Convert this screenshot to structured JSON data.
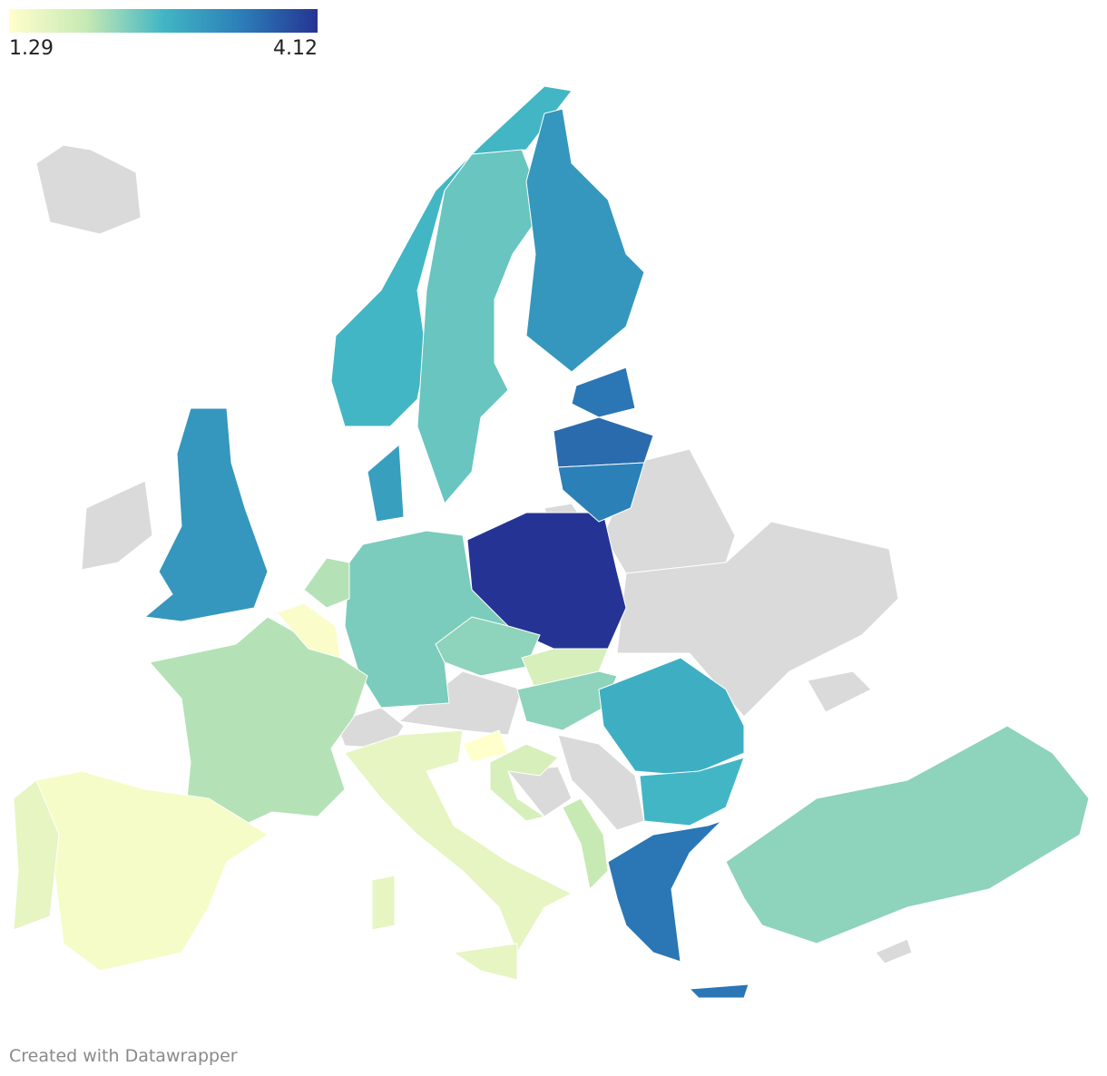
{
  "legend": {
    "min": 1.29,
    "max": 4.12,
    "colors": [
      "#ffffcc",
      "#c7e9b4",
      "#41b6c4",
      "#2c7fb8",
      "#253494"
    ]
  },
  "no_data_color": "#dadada",
  "regions": {
    "values": [
      4.12,
      2.4,
      2.1,
      1.4,
      1.6,
      1.6,
      1.6,
      1.6,
      3.1,
      2.7,
      2.5,
      3.1,
      3.5,
      3.6,
      3.4,
      3.0,
      2.1,
      1.35,
      2.3,
      1.8,
      2.3,
      2.8,
      2.7,
      3.5,
      3.5,
      2.3,
      1.29,
      1.8,
      2.0
    ]
  },
  "footer": "Created with Datawrapper"
}
